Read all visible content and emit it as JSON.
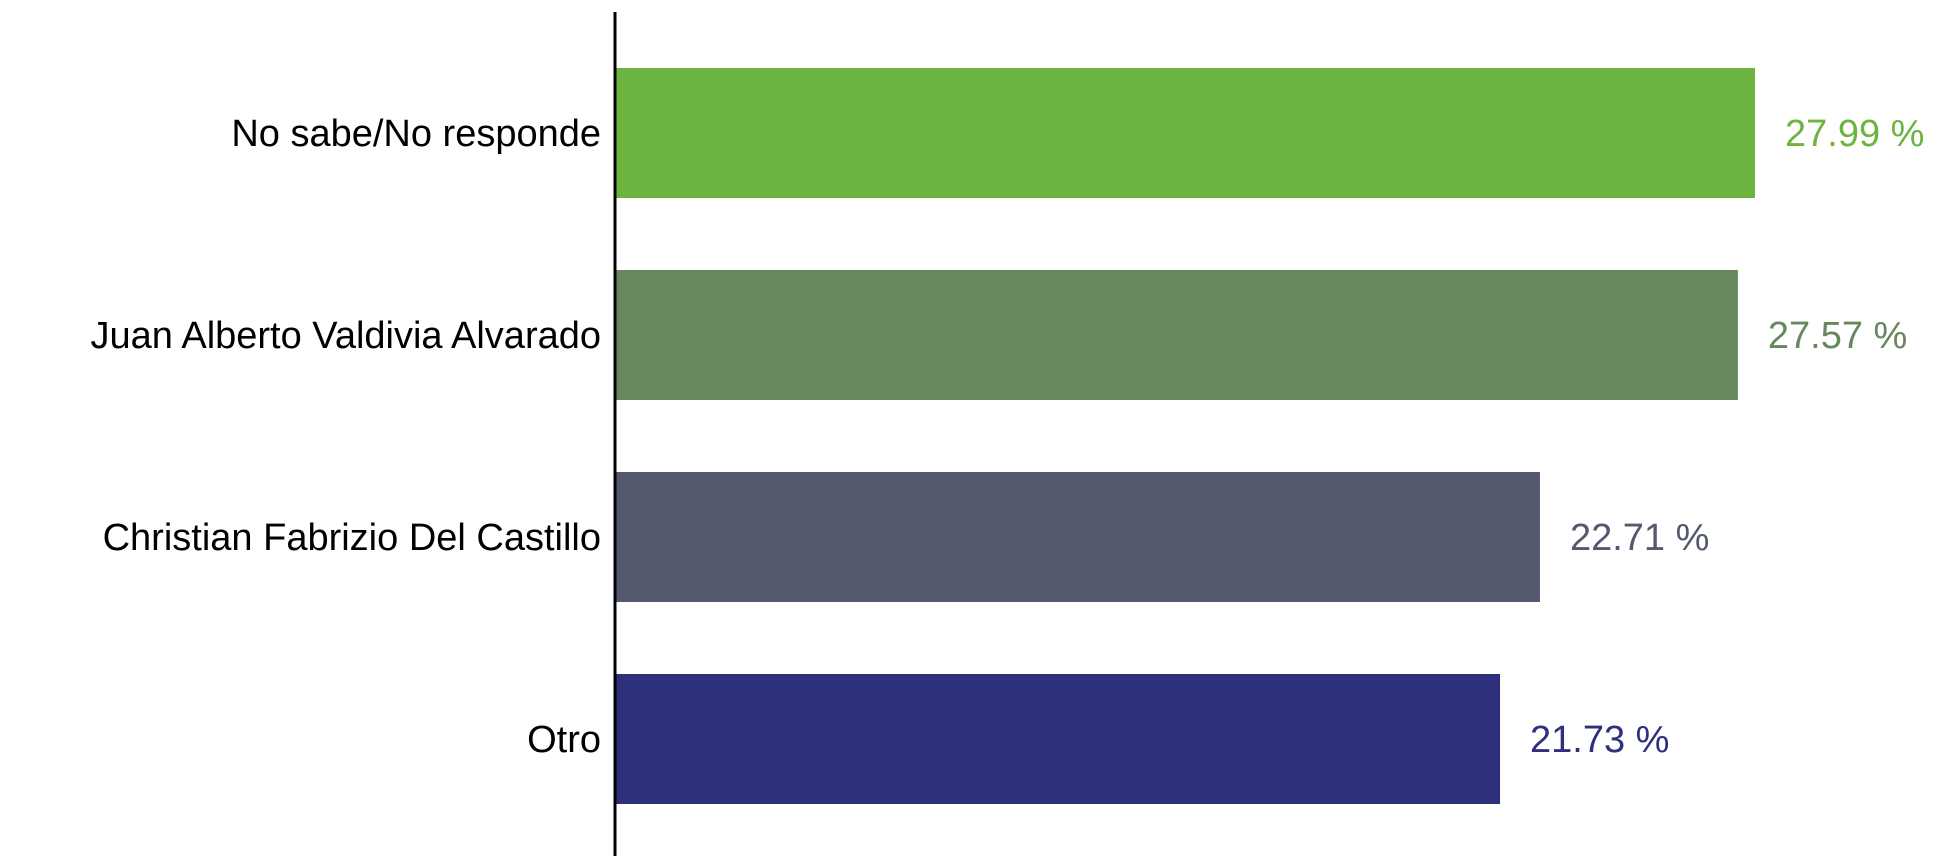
{
  "chart_data": {
    "type": "bar",
    "orientation": "horizontal",
    "categories": [
      "No sabe/No responde",
      "Juan Alberto Valdivia Alvarado",
      "Christian Fabrizio Del Castillo",
      "Otro"
    ],
    "values": [
      27.99,
      27.57,
      22.71,
      21.73
    ],
    "value_labels": [
      "27.99 %",
      "27.57 %",
      "22.71 %",
      "21.73 %"
    ],
    "colors": [
      "#6db33f",
      "#67875d",
      "#545970",
      "#2e2f7d"
    ],
    "title": "",
    "xlabel": "",
    "ylabel": "",
    "xlim": [
      0,
      30
    ],
    "grid": false,
    "legend": "none"
  }
}
